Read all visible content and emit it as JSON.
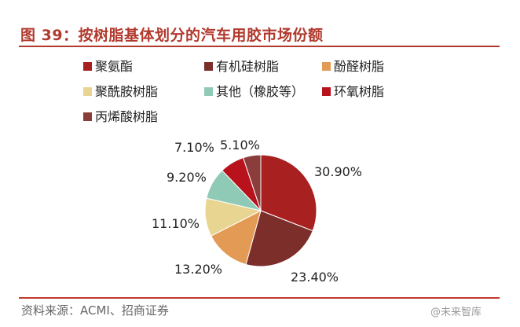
{
  "header": {
    "title": "图 39：按树脂基体划分的汽车用胶市场份额"
  },
  "footer": {
    "source": "资料来源：ACMI、招商证券",
    "watermark": "@未来智库"
  },
  "chart_data": {
    "type": "pie",
    "title": "",
    "categories": [
      "聚氨酯",
      "有机硅树脂",
      "酚醛树脂",
      "聚酰胺树脂",
      "其他（橡胶等）",
      "环氧树脂",
      "丙烯酸树脂"
    ],
    "values": [
      30.9,
      23.4,
      13.2,
      11.1,
      9.2,
      7.1,
      5.1
    ],
    "value_labels": [
      "30.90%",
      "23.40%",
      "13.20%",
      "11.10%",
      "9.20%",
      "7.10%",
      "5.10%"
    ],
    "colors": [
      "#a82020",
      "#7b2e2a",
      "#e39a55",
      "#e8d591",
      "#8fcab6",
      "#b8121c",
      "#8a3d3b"
    ],
    "start_at": "12 o'clock",
    "direction": "clockwise",
    "legend_position": "top"
  }
}
